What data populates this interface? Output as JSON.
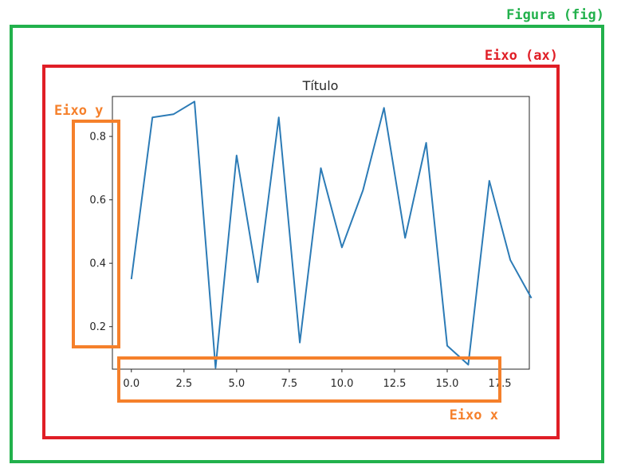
{
  "annotations": {
    "figure_label": "Figura (fig)",
    "axes_label": "Eixo (ax)",
    "yaxis_label": "Eixo y",
    "xaxis_label": "Eixo x"
  },
  "colors": {
    "figure": "#22b14c",
    "axes": "#e01e26",
    "axis": "#f5802b",
    "line": "#2c7bb6"
  },
  "chart_data": {
    "type": "line",
    "title": "Título",
    "xlabel": "",
    "ylabel": "",
    "xlim": [
      -0.9,
      18.9
    ],
    "ylim": [
      0.066,
      0.926
    ],
    "xticks": [
      0.0,
      2.5,
      5.0,
      7.5,
      10.0,
      12.5,
      15.0,
      17.5
    ],
    "xtick_labels": [
      "0.0",
      "2.5",
      "5.0",
      "7.5",
      "10.0",
      "12.5",
      "15.0",
      "17.5"
    ],
    "yticks": [
      0.2,
      0.4,
      0.6,
      0.8
    ],
    "ytick_labels": [
      "0.2",
      "0.4",
      "0.6",
      "0.8"
    ],
    "grid": false,
    "series": [
      {
        "x": [
          0,
          1,
          2,
          3,
          4,
          5,
          6,
          7,
          8,
          9,
          10,
          11,
          12,
          13,
          14,
          15,
          16,
          17,
          18,
          19
        ],
        "values": [
          0.35,
          0.86,
          0.87,
          0.91,
          0.07,
          0.74,
          0.34,
          0.86,
          0.15,
          0.7,
          0.45,
          0.63,
          0.89,
          0.48,
          0.78,
          0.14,
          0.08,
          0.66,
          0.41,
          0.29
        ]
      }
    ]
  }
}
